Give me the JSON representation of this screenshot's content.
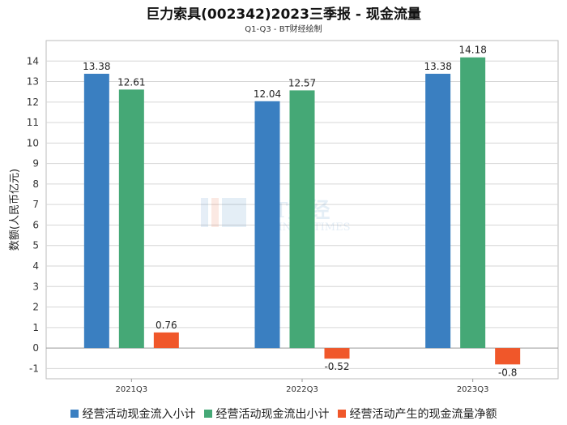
{
  "chart_data": {
    "type": "bar",
    "title": "巨力索具(002342)2023三季报 - 现金流量",
    "subtitle": "Q1-Q3 - BT财经绘制",
    "xlabel": "",
    "ylabel": "数额(人民币亿元)",
    "ylim": [
      -1.5,
      15
    ],
    "yticks": [
      -1,
      0,
      1,
      2,
      3,
      4,
      5,
      6,
      7,
      8,
      9,
      10,
      11,
      12,
      13,
      14
    ],
    "categories": [
      "2021Q3",
      "2022Q3",
      "2023Q3"
    ],
    "series": [
      {
        "name": "经营活动现金流入小计",
        "color": "#3a7fc1",
        "values": [
          13.38,
          12.04,
          13.38
        ],
        "labels": [
          "13.38",
          "12.04",
          "13.38"
        ]
      },
      {
        "name": "经营活动现金流出小计",
        "color": "#45a876",
        "values": [
          12.61,
          12.57,
          14.18
        ],
        "labels": [
          "12.61",
          "12.57",
          "14.18"
        ]
      },
      {
        "name": "经营活动产生的现金流量净额",
        "color": "#f0572a",
        "values": [
          0.76,
          -0.52,
          -0.8
        ],
        "labels": [
          "0.76",
          "-0.52",
          "-0.8"
        ]
      }
    ],
    "legend": "bottom",
    "grid": true
  },
  "watermark": {
    "main": "BT财经",
    "sub": "BUSINESSTIMES"
  }
}
